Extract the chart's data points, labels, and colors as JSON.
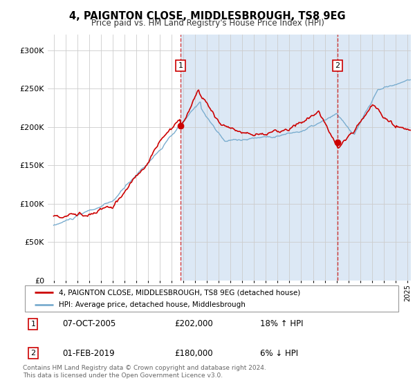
{
  "title": "4, PAIGNTON CLOSE, MIDDLESBROUGH, TS8 9EG",
  "subtitle": "Price paid vs. HM Land Registry's House Price Index (HPI)",
  "hpi_label": "HPI: Average price, detached house, Middlesbrough",
  "price_label": "4, PAIGNTON CLOSE, MIDDLESBROUGH, TS8 9EG (detached house)",
  "price_color": "#cc0000",
  "hpi_color": "#7aadcf",
  "background_shaded": "#dce8f5",
  "marker1": {
    "date_num": 2005.77,
    "value": 202000,
    "label": "1",
    "date_str": "07-OCT-2005",
    "pct": "18%",
    "dir": "↑"
  },
  "marker2": {
    "date_num": 2019.08,
    "value": 180000,
    "label": "2",
    "date_str": "01-FEB-2019",
    "pct": "6%",
    "dir": "↓"
  },
  "ylim": [
    0,
    320000
  ],
  "xlim": [
    1994.5,
    2025.3
  ],
  "yticks": [
    0,
    50000,
    100000,
    150000,
    200000,
    250000,
    300000
  ],
  "ytick_labels": [
    "£0",
    "£50K",
    "£100K",
    "£150K",
    "£200K",
    "£250K",
    "£300K"
  ],
  "xticks": [
    1995,
    1996,
    1997,
    1998,
    1999,
    2000,
    2001,
    2002,
    2003,
    2004,
    2005,
    2006,
    2007,
    2008,
    2009,
    2010,
    2011,
    2012,
    2013,
    2014,
    2015,
    2016,
    2017,
    2018,
    2019,
    2020,
    2021,
    2022,
    2023,
    2024,
    2025
  ],
  "footnote": "Contains HM Land Registry data © Crown copyright and database right 2024.\nThis data is licensed under the Open Government Licence v3.0.",
  "table_row1": [
    "1",
    "07-OCT-2005",
    "£202,000",
    "18% ↑ HPI"
  ],
  "table_row2": [
    "2",
    "01-FEB-2019",
    "£180,000",
    "6% ↓ HPI"
  ]
}
